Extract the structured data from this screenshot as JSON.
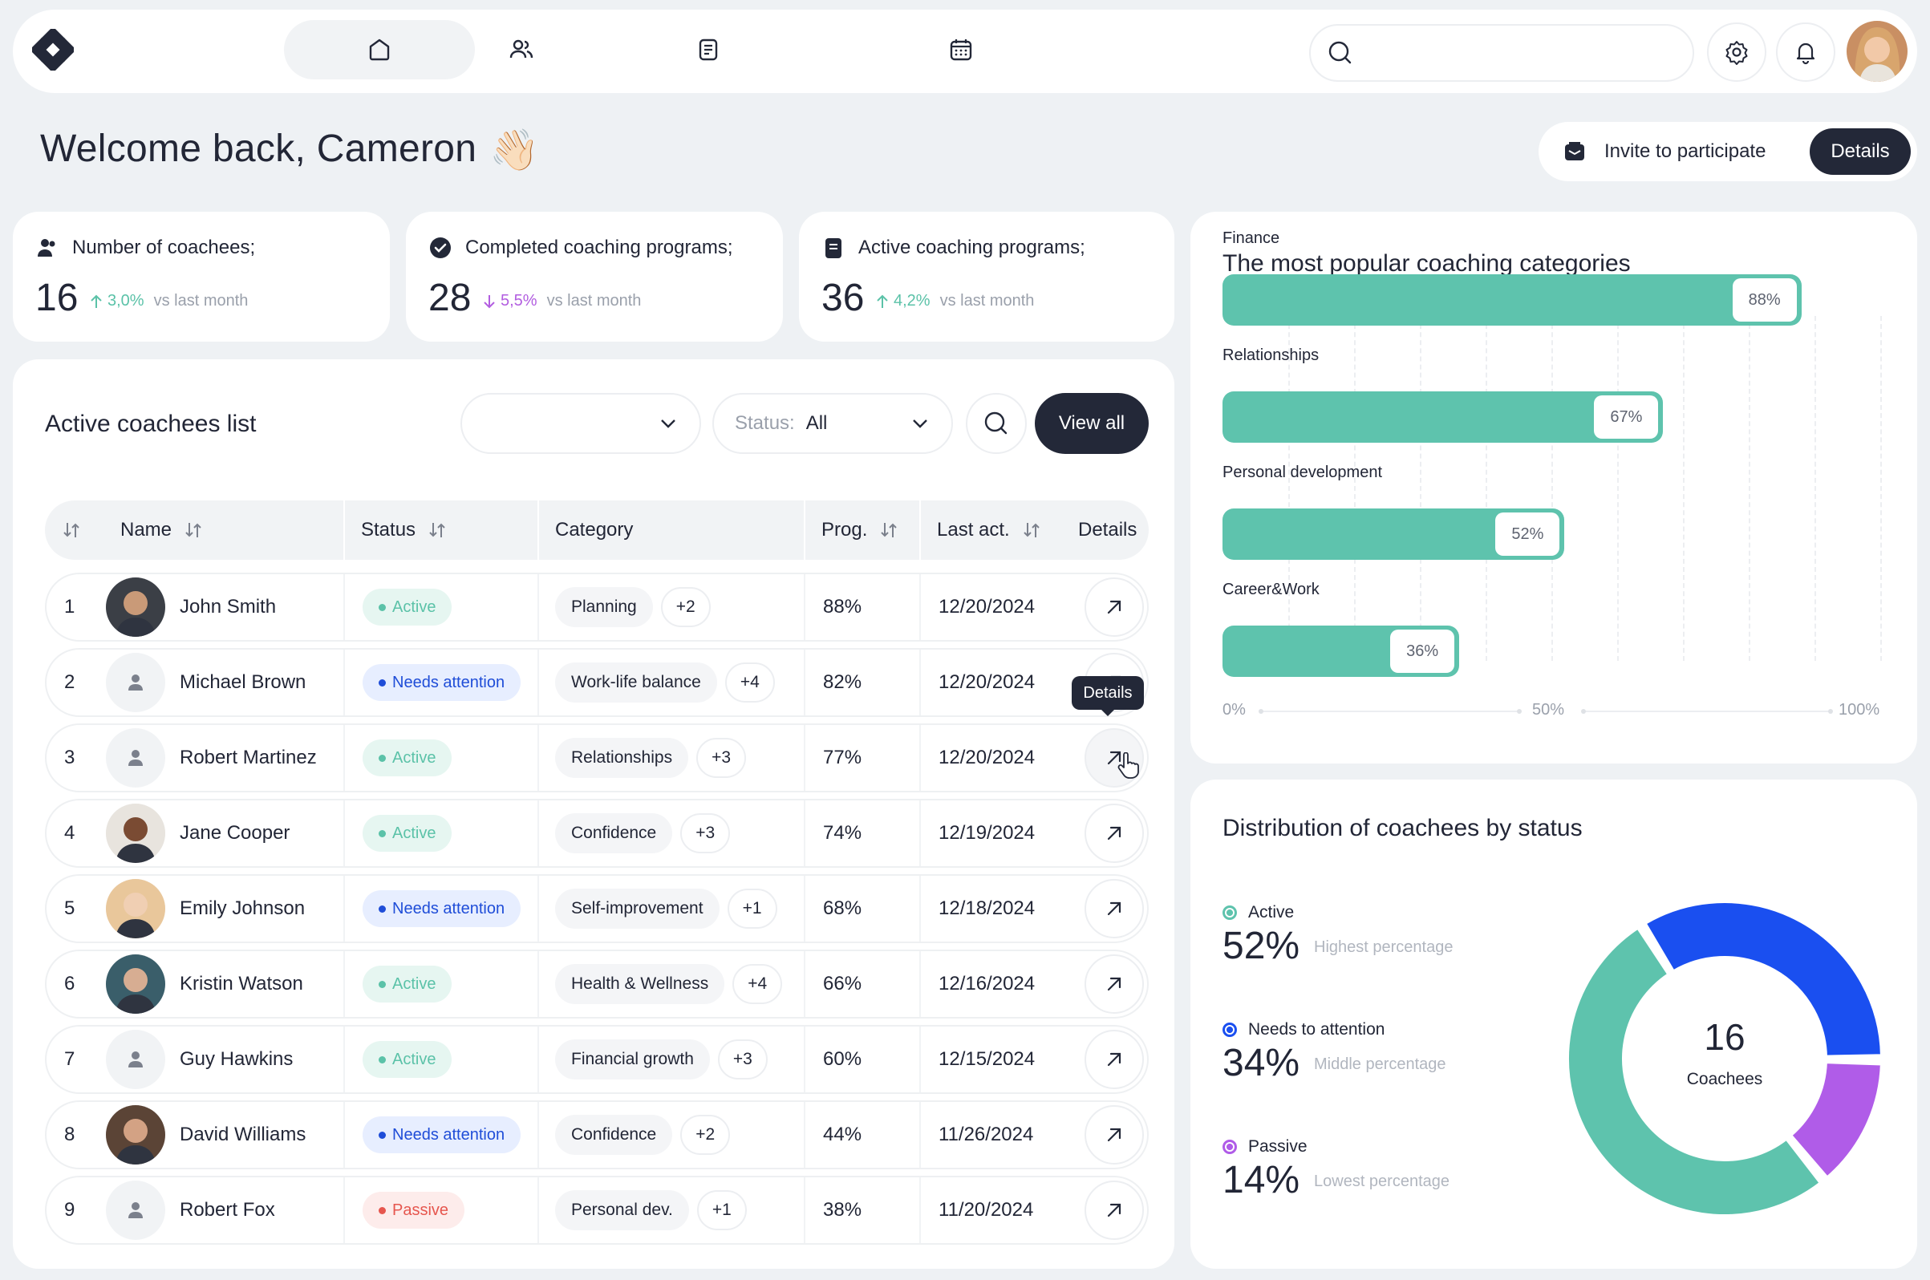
{
  "header": {
    "nav_icons": [
      "home-icon",
      "users-icon",
      "document-icon",
      "calendar-icon"
    ],
    "search_placeholder": "",
    "icons": [
      "settings-icon",
      "bell-icon"
    ]
  },
  "welcome": {
    "title": "Welcome back, Cameron",
    "emoji": "👋🏻",
    "invite_label": "Invite to participate",
    "details_label": "Details"
  },
  "stats": [
    {
      "title": "Number of coachees;",
      "value": "16",
      "delta": "3,0%",
      "direction": "up",
      "vs": "vs last month"
    },
    {
      "title": "Completed coaching programs;",
      "value": "28",
      "delta": "5,5%",
      "direction": "down",
      "vs": "vs last month"
    },
    {
      "title": "Active coaching programs;",
      "value": "36",
      "delta": "4,2%",
      "direction": "up",
      "vs": "vs last month"
    }
  ],
  "list": {
    "title": "Active coachees list",
    "filter1_value": "",
    "status_label": "Status:",
    "status_value": "All",
    "view_all": "View all",
    "columns": {
      "name": "Name",
      "status": "Status",
      "category": "Category",
      "progress": "Prog.",
      "last": "Last act.",
      "details": "Details"
    },
    "tooltip": "Details",
    "rows": [
      {
        "num": "1",
        "name": "John Smith",
        "status": "Active",
        "status_key": "active",
        "category": "Planning",
        "more": "+2",
        "progress": "88%",
        "last": "12/20/2024",
        "avatar": "photo"
      },
      {
        "num": "2",
        "name": "Michael Brown",
        "status": "Needs attention",
        "status_key": "needs",
        "category": "Work-life balance",
        "more": "+4",
        "progress": "82%",
        "last": "12/20/2024",
        "avatar": "placeholder"
      },
      {
        "num": "3",
        "name": "Robert Martinez",
        "status": "Active",
        "status_key": "active",
        "category": "Relationships",
        "more": "+3",
        "progress": "77%",
        "last": "12/20/2024",
        "avatar": "placeholder"
      },
      {
        "num": "4",
        "name": "Jane Cooper",
        "status": "Active",
        "status_key": "active",
        "category": "Confidence",
        "more": "+3",
        "progress": "74%",
        "last": "12/19/2024",
        "avatar": "photo"
      },
      {
        "num": "5",
        "name": "Emily Johnson",
        "status": "Needs attention",
        "status_key": "needs",
        "category": "Self-improvement",
        "more": "+1",
        "progress": "68%",
        "last": "12/18/2024",
        "avatar": "photo"
      },
      {
        "num": "6",
        "name": "Kristin Watson",
        "status": "Active",
        "status_key": "active",
        "category": "Health & Wellness",
        "more": "+4",
        "progress": "66%",
        "last": "12/16/2024",
        "avatar": "photo"
      },
      {
        "num": "7",
        "name": "Guy Hawkins",
        "status": "Active",
        "status_key": "active",
        "category": "Financial growth",
        "more": "+3",
        "progress": "60%",
        "last": "12/15/2024",
        "avatar": "placeholder"
      },
      {
        "num": "8",
        "name": "David Williams",
        "status": "Needs attention",
        "status_key": "needs",
        "category": "Confidence",
        "more": "+2",
        "progress": "44%",
        "last": "11/26/2024",
        "avatar": "photo"
      },
      {
        "num": "9",
        "name": "Robert Fox",
        "status": "Passive",
        "status_key": "passive",
        "category": "Personal dev.",
        "more": "+1",
        "progress": "38%",
        "last": "11/20/2024",
        "avatar": "placeholder"
      }
    ]
  },
  "chart_data": [
    {
      "type": "bar",
      "orientation": "horizontal",
      "title": "The most popular coaching categories",
      "categories": [
        "Finance",
        "Relationships",
        "Personal development",
        "Career&Work"
      ],
      "values": [
        88,
        67,
        52,
        36
      ],
      "value_labels": [
        "88%",
        "67%",
        "52%",
        "36%"
      ],
      "xlim": [
        0,
        100
      ],
      "x_ticks": [
        "0%",
        "50%",
        "100%"
      ],
      "color": "#5ec3ad"
    },
    {
      "type": "pie",
      "variant": "donut",
      "title": "Distribution of coachees by status",
      "center_value": "16",
      "center_label": "Coachees",
      "slices": [
        {
          "name": "Active",
          "value": 52,
          "label": "52%",
          "note": "Highest percentage",
          "color": "#5ec3ad"
        },
        {
          "name": "Needs to attention",
          "value": 34,
          "label": "34%",
          "note": "Middle percentage",
          "color": "#1a4ff0"
        },
        {
          "name": "Passive",
          "value": 14,
          "label": "14%",
          "note": "Lowest percentage",
          "color": "#b05ce8"
        }
      ]
    }
  ]
}
